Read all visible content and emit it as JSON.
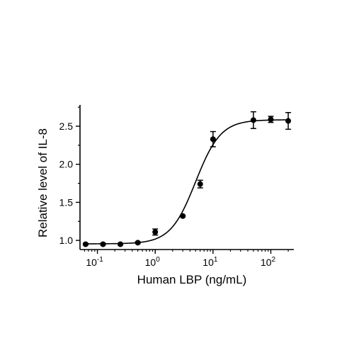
{
  "chart_data": {
    "type": "scatter",
    "xlabel": "Human LBP (ng/mL)",
    "ylabel": "Relative level of IL-8",
    "x_scale": "log10",
    "xlim": [
      0.05,
      250
    ],
    "ylim": [
      0.88,
      2.78
    ],
    "x_tick_values": [
      0.1,
      1,
      10,
      100
    ],
    "x_tick_labels": [
      {
        "base": "10",
        "exp": "-1"
      },
      {
        "base": "10",
        "exp": "0"
      },
      {
        "base": "10",
        "exp": "1"
      },
      {
        "base": "10",
        "exp": "2"
      }
    ],
    "y_ticks": [
      1.0,
      1.5,
      2.0,
      2.5
    ],
    "y_tick_labels": [
      "1.0",
      "1.5",
      "2.0",
      "2.5"
    ],
    "grid": false,
    "series": [
      {
        "points": [
          {
            "x": 0.0625,
            "y": 0.95,
            "err": 0.01
          },
          {
            "x": 0.125,
            "y": 0.95,
            "err": 0.01
          },
          {
            "x": 0.25,
            "y": 0.95,
            "err": 0.01
          },
          {
            "x": 0.5,
            "y": 0.97,
            "err": 0.01
          },
          {
            "x": 1,
            "y": 1.11,
            "err": 0.04
          },
          {
            "x": 3,
            "y": 1.32,
            "err": 0.01
          },
          {
            "x": 6,
            "y": 1.74,
            "err": 0.05
          },
          {
            "x": 10,
            "y": 2.33,
            "err": 0.1
          },
          {
            "x": 50,
            "y": 2.58,
            "err": 0.11
          },
          {
            "x": 100,
            "y": 2.59,
            "err": 0.04
          },
          {
            "x": 200,
            "y": 2.57,
            "err": 0.11
          }
        ],
        "fit": {
          "model": "4PL",
          "bottom": 0.955,
          "top": 2.585,
          "ec50": 5.0,
          "hill": 2.0
        }
      }
    ]
  }
}
